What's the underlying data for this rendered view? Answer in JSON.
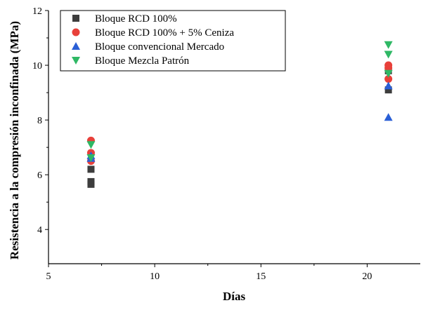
{
  "chart_data": {
    "type": "scatter",
    "title": "",
    "xlabel": "Días",
    "ylabel": "Resistencia a la compresión inconfinada (MPa)",
    "xlim": [
      5,
      22.5
    ],
    "ylim": [
      2.75,
      12
    ],
    "xticks": [
      5,
      10,
      15,
      20
    ],
    "yticks": [
      4,
      6,
      8,
      10,
      12
    ],
    "grid": false,
    "legend_position": "top-left",
    "series": [
      {
        "name": "Bloque RCD 100%",
        "marker": "square",
        "color": "#3d3d3d",
        "points": [
          [
            7,
            5.65
          ],
          [
            7,
            5.75
          ],
          [
            7,
            6.2
          ],
          [
            21,
            9.1
          ],
          [
            21,
            9.8
          ]
        ]
      },
      {
        "name": "Bloque RCD 100% + 5% Ceniza",
        "marker": "circle",
        "color": "#e8403a",
        "points": [
          [
            7,
            6.5
          ],
          [
            7,
            6.8
          ],
          [
            7,
            7.25
          ],
          [
            21,
            9.5
          ],
          [
            21,
            9.9
          ],
          [
            21,
            10.0
          ]
        ]
      },
      {
        "name": "Bloque convencional Mercado",
        "marker": "triangle-up",
        "color": "#2a5fd6",
        "points": [
          [
            7,
            6.6
          ],
          [
            7,
            6.7
          ],
          [
            21,
            8.1
          ],
          [
            21,
            9.25
          ]
        ]
      },
      {
        "name": "Bloque Mezcla Patrón",
        "marker": "triangle-down",
        "color": "#2fb865",
        "points": [
          [
            7,
            6.62
          ],
          [
            7,
            7.1
          ],
          [
            21,
            9.7
          ],
          [
            21,
            10.4
          ],
          [
            21,
            10.75
          ]
        ]
      }
    ]
  }
}
